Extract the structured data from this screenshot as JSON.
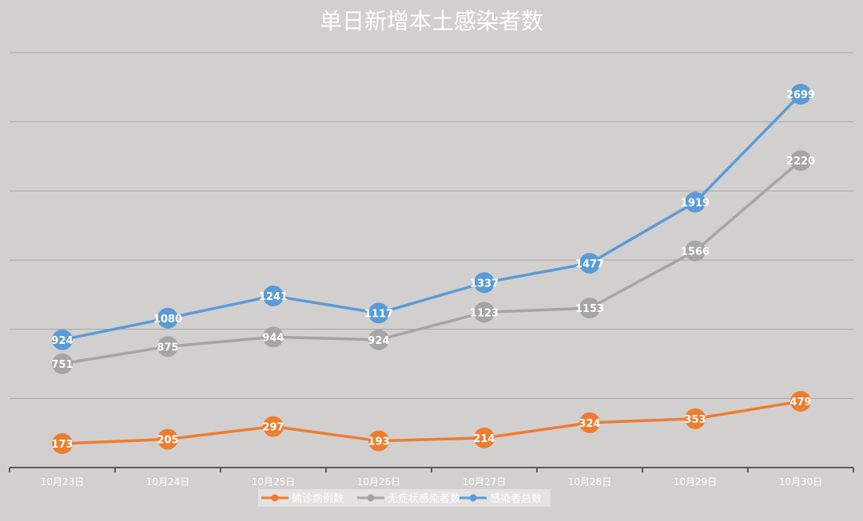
{
  "chart_data": {
    "type": "line",
    "title": "单日新增本土感染者数",
    "categories": [
      "10月23日",
      "10月24日",
      "10月25日",
      "10月26日",
      "10月27日",
      "10月28日",
      "10月29日",
      "10月30日"
    ],
    "ylim": [
      0,
      3000
    ],
    "grid": true,
    "legend_position": "bottom-center",
    "series": [
      {
        "name": "确诊病例数",
        "color": "#ed7d31",
        "values": [
          173,
          205,
          297,
          193,
          214,
          324,
          353,
          479
        ]
      },
      {
        "name": "无症状感染者数",
        "color": "#a5a5a5",
        "values": [
          751,
          875,
          944,
          924,
          1123,
          1153,
          1566,
          2220
        ]
      },
      {
        "name": "感染者总数",
        "color": "#5b9bd5",
        "values": [
          924,
          1080,
          1241,
          1117,
          1337,
          1477,
          1919,
          2699
        ]
      }
    ]
  }
}
